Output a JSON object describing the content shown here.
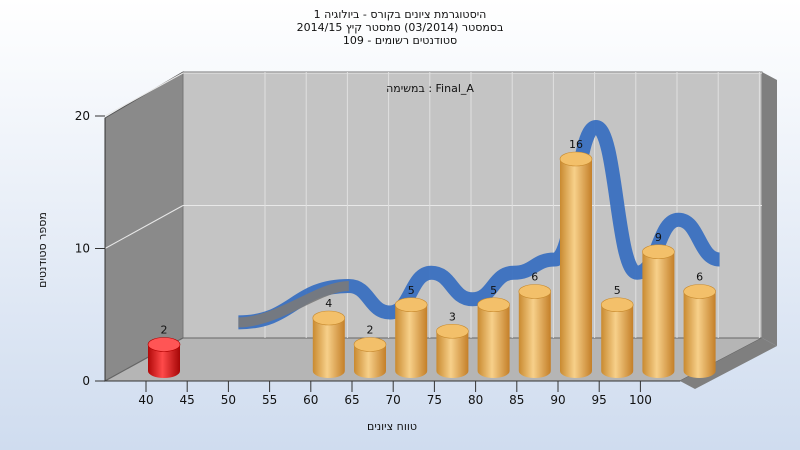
{
  "header": {
    "title_line1": "היסטוגרמת ציונים בקורס - ביולוגיה 1",
    "title_line2": "בסמסטר  (03/2014)  סמסטר קיץ 2014/15",
    "title_line3": "סטודנטים רשומים - 109"
  },
  "chart_data": {
    "type": "bar",
    "annotation": "במשימה : Final_A",
    "xlabel": "טווח ציונים",
    "ylabel": "מספר סטודנטים",
    "x_ticks": [
      "40",
      "45",
      "50",
      "55",
      "60",
      "65",
      "70",
      "75",
      "80",
      "85",
      "90",
      "95",
      "100"
    ],
    "y_ticks": [
      "0",
      "10",
      "20"
    ],
    "ylim": [
      0,
      20
    ],
    "bars": [
      {
        "label": "40",
        "value": 2,
        "color": "#e02020"
      },
      {
        "label": "60",
        "value": 4,
        "color": "#e8a850"
      },
      {
        "label": "65",
        "value": 2,
        "color": "#e8a850"
      },
      {
        "label": "70",
        "value": 5,
        "color": "#e8a850"
      },
      {
        "label": "75",
        "value": 3,
        "color": "#e8a850"
      },
      {
        "label": "80",
        "value": 5,
        "color": "#e8a850"
      },
      {
        "label": "85",
        "value": 6,
        "color": "#e8a850"
      },
      {
        "label": "90",
        "value": 16,
        "color": "#e8a850"
      },
      {
        "label": "95",
        "value": 5,
        "color": "#e8a850"
      },
      {
        "label": "100",
        "value": 9,
        "color": "#e8a850"
      },
      {
        "label": "105",
        "value": 6,
        "color": "#e8a850"
      }
    ],
    "curve": {
      "color": "#3a70c0",
      "start_color": "#7a7a7a"
    },
    "grid": true
  }
}
